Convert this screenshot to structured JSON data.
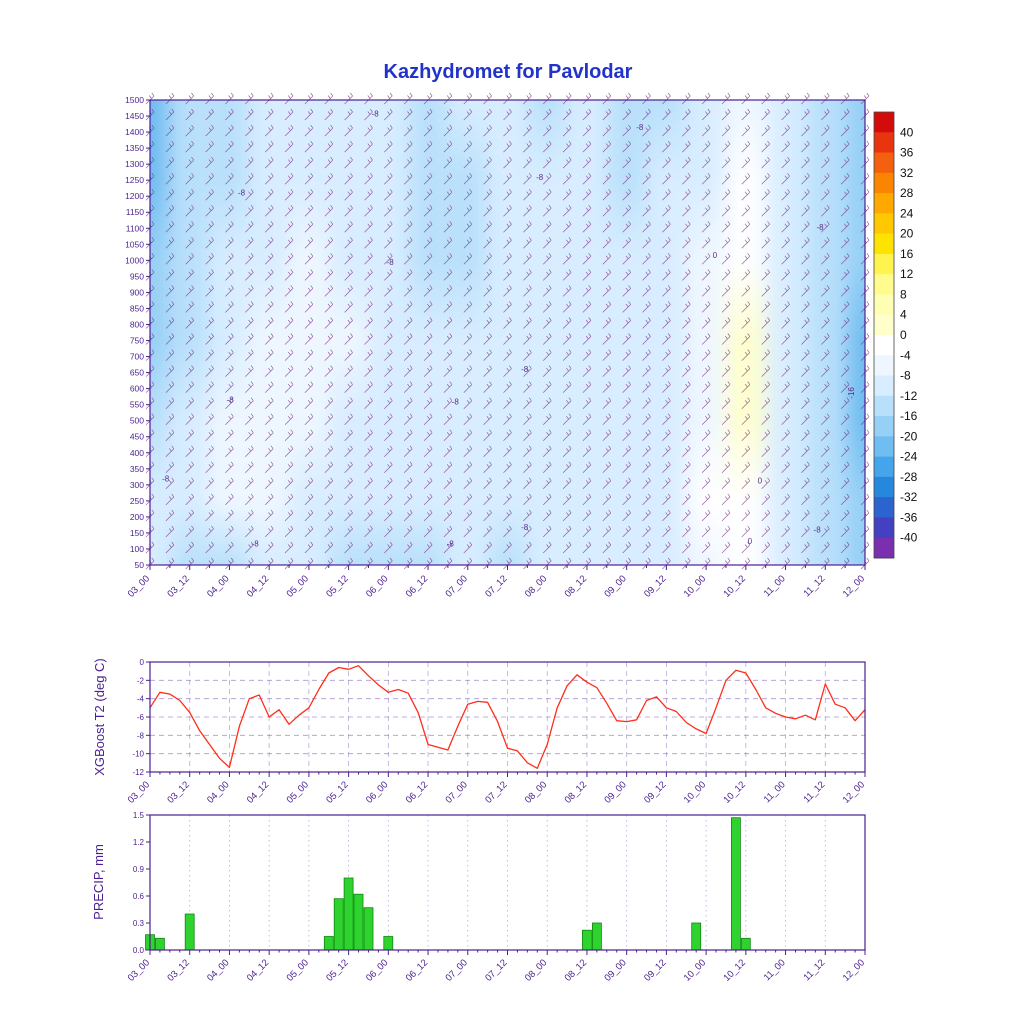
{
  "title": {
    "text": "Kazhydromet for Pavlodar",
    "color": "#2233cc"
  },
  "styles": {
    "axis_color": "#4b1f8f",
    "label_color": "#4b1f8f",
    "grid_color": "#8a6fc0",
    "barb_color": "#7b2d83",
    "contour_label_color": "#5b2a86",
    "colorbar_label_color": "#111111"
  },
  "x_axis": {
    "labels": [
      "03_00",
      "03_12",
      "04_00",
      "04_12",
      "05_00",
      "05_12",
      "06_00",
      "06_12",
      "07_00",
      "07_12",
      "08_00",
      "08_12",
      "09_00",
      "09_12",
      "10_00",
      "10_12",
      "11_00",
      "11_12",
      "12_00"
    ],
    "hours_span": 216,
    "major_step_hours": 12
  },
  "chart_data": [
    {
      "id": "temperature_height_cross_section",
      "type": "heatmap",
      "y_ticks": [
        1500,
        1450,
        1400,
        1350,
        1300,
        1250,
        1200,
        1150,
        1100,
        1050,
        1000,
        950,
        900,
        850,
        800,
        750,
        700,
        650,
        600,
        550,
        500,
        450,
        400,
        350,
        300,
        250,
        200,
        150,
        100,
        50
      ],
      "colorbar": {
        "tick_values": [
          40,
          36,
          32,
          28,
          24,
          20,
          16,
          12,
          8,
          4,
          0,
          -4,
          -8,
          -12,
          -16,
          -20,
          -24,
          -28,
          -32,
          -36,
          -40
        ],
        "levels_asc": [
          -40,
          -36,
          -32,
          -28,
          -24,
          -20,
          -16,
          -12,
          -8,
          -4,
          0,
          4,
          8,
          12,
          16,
          20,
          24,
          28,
          32,
          36,
          40
        ],
        "colors_asc": [
          "#7a2fae",
          "#4440c2",
          "#2c63cf",
          "#2688dd",
          "#45a5ea",
          "#6fbdf1",
          "#96d0f6",
          "#b9e0fb",
          "#d8edff",
          "#eef7ff",
          "#ffffff",
          "#ffffcc",
          "#ffffb3",
          "#fffb8c",
          "#fff34d",
          "#ffe300",
          "#ffc800",
          "#ffa800",
          "#fb8500",
          "#f4600d",
          "#e83510",
          "#d40b0b"
        ]
      },
      "grid": {
        "heights": [
          1500,
          1250,
          1000,
          750,
          500,
          250,
          50
        ],
        "columns_follow": "x_axis.labels",
        "values": [
          [
            -21,
            -15,
            -12,
            -11,
            -9,
            -8,
            -11,
            -12,
            -11,
            -10,
            -12,
            -9,
            -13,
            -12,
            -10,
            -5,
            -11,
            -13,
            -19
          ],
          [
            -21,
            -14,
            -12,
            -10,
            -9,
            -8,
            -11,
            -12,
            -12,
            -10,
            -11,
            -8,
            -12,
            -11,
            -8,
            -3,
            -10,
            -13,
            -19
          ],
          [
            -19,
            -13,
            -10,
            -8,
            -7,
            -8,
            -10,
            -12,
            -12,
            -10,
            -10,
            -8,
            -11,
            -10,
            -6,
            -1,
            -10,
            -13,
            -18
          ],
          [
            -17,
            -12,
            -8,
            -6,
            -6,
            -7,
            -10,
            -11,
            -10,
            -9,
            -9,
            -8,
            -10,
            -9,
            -5,
            1,
            -10,
            -14,
            -20
          ],
          [
            -14,
            -10,
            -7,
            -6,
            -6,
            -8,
            -10,
            -10,
            -9,
            -8,
            -8,
            -8,
            -9,
            -8,
            -4,
            1,
            -9,
            -15,
            -21
          ],
          [
            -11,
            -8,
            -6,
            -6,
            -8,
            -10,
            -11,
            -10,
            -8,
            -8,
            -9,
            -8,
            -8,
            -8,
            -3,
            0,
            -9,
            -15,
            -19
          ],
          [
            -10,
            -12,
            -13,
            -8,
            -9,
            -12,
            -13,
            -12,
            -10,
            -12,
            -11,
            -10,
            -8,
            -8,
            -4,
            0,
            -10,
            -14,
            -17
          ]
        ]
      },
      "contour_labels": [
        {
          "text": "-8",
          "fx": 0.315,
          "fy": 0.035
        },
        {
          "text": "-8",
          "fx": 0.685,
          "fy": 0.065
        },
        {
          "text": "-8",
          "fx": 0.545,
          "fy": 0.172
        },
        {
          "text": "-8",
          "fx": 0.128,
          "fy": 0.205
        },
        {
          "text": "-8",
          "fx": 0.937,
          "fy": 0.28
        },
        {
          "text": "-8",
          "fx": 0.336,
          "fy": 0.355
        },
        {
          "text": "0",
          "fx": 0.79,
          "fy": 0.34
        },
        {
          "text": "-8",
          "fx": 0.524,
          "fy": 0.585
        },
        {
          "text": "-8",
          "fx": 0.112,
          "fy": 0.65
        },
        {
          "text": "-8",
          "fx": 0.427,
          "fy": 0.655
        },
        {
          "text": "-16",
          "fx": 0.985,
          "fy": 0.63,
          "rot": -90
        },
        {
          "text": "-8",
          "fx": 0.022,
          "fy": 0.82
        },
        {
          "text": "0",
          "fx": 0.853,
          "fy": 0.825
        },
        {
          "text": "-8",
          "fx": 0.524,
          "fy": 0.925
        },
        {
          "text": "-8",
          "fx": 0.933,
          "fy": 0.93
        },
        {
          "text": "-8",
          "fx": 0.147,
          "fy": 0.96
        },
        {
          "text": "-8",
          "fx": 0.42,
          "fy": 0.96
        },
        {
          "text": "0",
          "fx": 0.839,
          "fy": 0.955
        }
      ],
      "wind_barbs": {
        "present": true
      }
    },
    {
      "id": "t2",
      "type": "line",
      "ylabel": "XGBoost T2 (deg C)",
      "line_color": "#ff2d1a",
      "ylim": [
        -12,
        0
      ],
      "y_ticks": [
        0,
        -2,
        -4,
        -6,
        -8,
        -10,
        -12
      ],
      "start_hour": 0,
      "step_hours": 3,
      "values": [
        -5.0,
        -3.3,
        -3.5,
        -4.2,
        -5.5,
        -7.5,
        -9.0,
        -10.5,
        -11.5,
        -7.0,
        -4.0,
        -3.6,
        -6.0,
        -5.2,
        -6.8,
        -5.8,
        -5.0,
        -3.0,
        -1.2,
        -0.6,
        -0.8,
        -0.4,
        -1.5,
        -2.5,
        -3.3,
        -3.0,
        -3.4,
        -5.5,
        -9.0,
        -9.3,
        -9.6,
        -7.0,
        -4.6,
        -4.3,
        -4.4,
        -6.5,
        -9.4,
        -9.7,
        -11.0,
        -11.6,
        -9.0,
        -5.0,
        -2.6,
        -1.4,
        -2.2,
        -2.8,
        -4.5,
        -6.4,
        -6.5,
        -6.3,
        -4.2,
        -3.8,
        -5.0,
        -5.4,
        -6.6,
        -7.3,
        -7.8,
        -5.0,
        -2.0,
        -0.9,
        -1.2,
        -3.0,
        -5.0,
        -5.6,
        -6.0,
        -6.2,
        -5.8,
        -6.3,
        -2.4,
        -4.6,
        -5.0,
        -6.4,
        -5.2
      ]
    },
    {
      "id": "precip",
      "type": "bar",
      "ylabel": "PRECIP, mm",
      "bar_color": "#2fd32f",
      "bar_edge": "#118811",
      "ylim": [
        0,
        1.5
      ],
      "y_ticks": [
        0.0,
        0.3,
        0.6,
        0.9,
        1.2,
        1.5
      ],
      "bars": [
        {
          "hour": 0,
          "value": 0.17
        },
        {
          "hour": 3,
          "value": 0.13
        },
        {
          "hour": 12,
          "value": 0.4
        },
        {
          "hour": 54,
          "value": 0.15
        },
        {
          "hour": 57,
          "value": 0.57
        },
        {
          "hour": 60,
          "value": 0.8
        },
        {
          "hour": 63,
          "value": 0.62
        },
        {
          "hour": 66,
          "value": 0.47
        },
        {
          "hour": 72,
          "value": 0.15
        },
        {
          "hour": 132,
          "value": 0.22
        },
        {
          "hour": 135,
          "value": 0.3
        },
        {
          "hour": 165,
          "value": 0.3
        },
        {
          "hour": 177,
          "value": 1.47
        },
        {
          "hour": 180,
          "value": 0.13
        }
      ]
    }
  ]
}
